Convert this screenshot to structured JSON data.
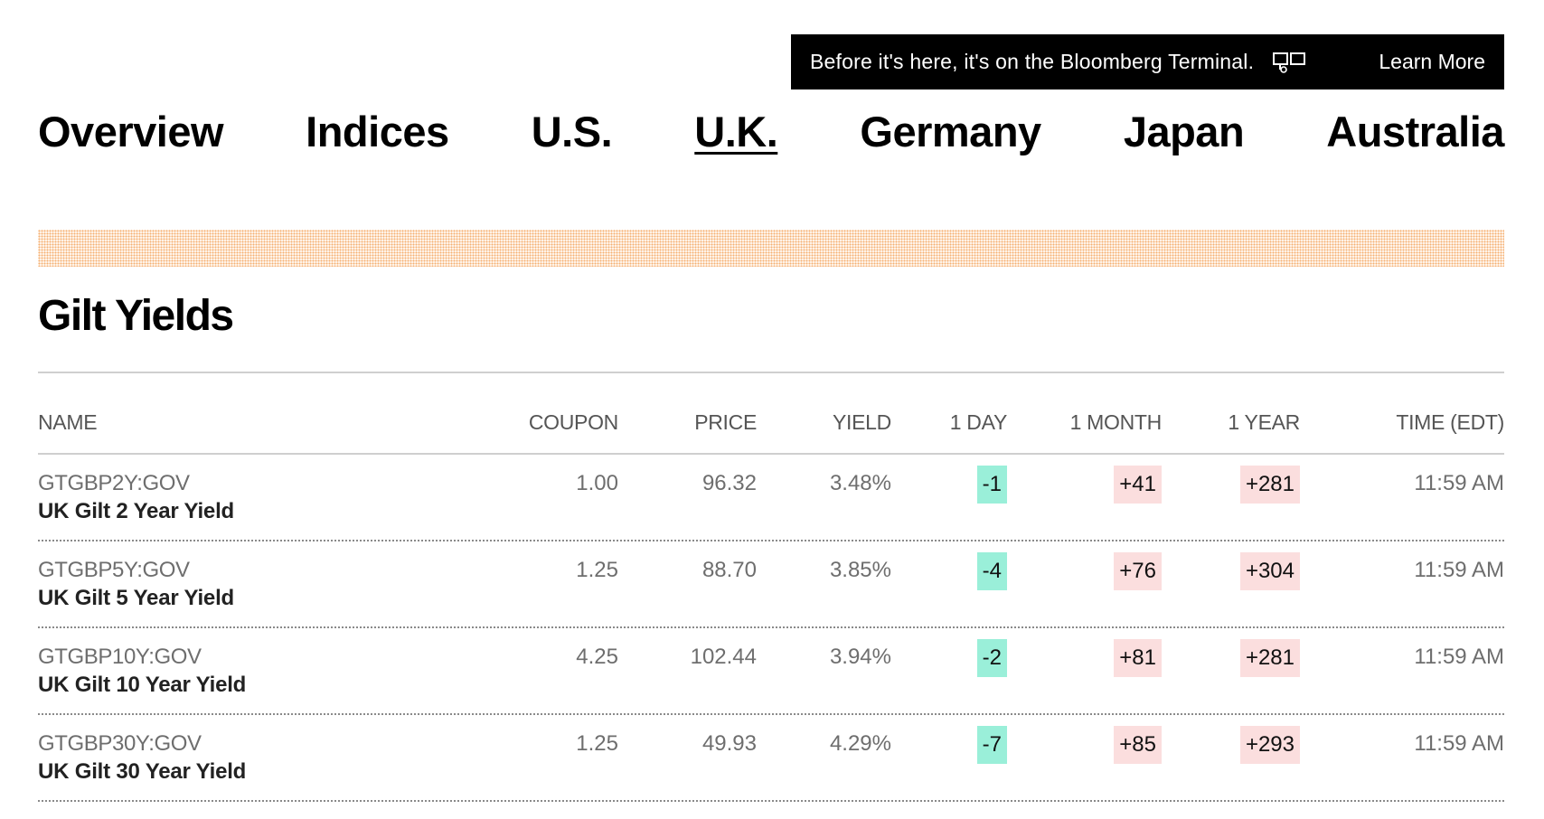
{
  "banner": {
    "text": "Before it's here, it's on the Bloomberg Terminal.",
    "icon": "terminal-icon",
    "link": "Learn More"
  },
  "nav": {
    "items": [
      {
        "label": "Overview"
      },
      {
        "label": "Indices"
      },
      {
        "label": "U.S."
      },
      {
        "label": "U.K.",
        "active": true
      },
      {
        "label": "Germany"
      },
      {
        "label": "Japan"
      },
      {
        "label": "Australia"
      }
    ]
  },
  "section": {
    "title": "Gilt Yields"
  },
  "table": {
    "columns": [
      "NAME",
      "COUPON",
      "PRICE",
      "YIELD",
      "1 DAY",
      "1 MONTH",
      "1 YEAR",
      "TIME (EDT)"
    ],
    "rows": [
      {
        "ticker": "GTGBP2Y:GOV",
        "name": "UK Gilt 2 Year Yield",
        "coupon": "1.00",
        "price": "96.32",
        "yield": "3.48%",
        "day": "-1",
        "month": "+41",
        "year": "+281",
        "time": "11:59 AM"
      },
      {
        "ticker": "GTGBP5Y:GOV",
        "name": "UK Gilt 5 Year Yield",
        "coupon": "1.25",
        "price": "88.70",
        "yield": "3.85%",
        "day": "-4",
        "month": "+76",
        "year": "+304",
        "time": "11:59 AM"
      },
      {
        "ticker": "GTGBP10Y:GOV",
        "name": "UK Gilt 10 Year Yield",
        "coupon": "4.25",
        "price": "102.44",
        "yield": "3.94%",
        "day": "-2",
        "month": "+81",
        "year": "+281",
        "time": "11:59 AM"
      },
      {
        "ticker": "GTGBP30Y:GOV",
        "name": "UK Gilt 30 Year Yield",
        "coupon": "1.25",
        "price": "49.93",
        "yield": "4.29%",
        "day": "-7",
        "month": "+85",
        "year": "+293",
        "time": "11:59 AM"
      }
    ]
  },
  "colors": {
    "negative_change_bg": "#9aefd9",
    "positive_change_bg": "#fbdede",
    "banner_bg": "#000000",
    "dot_strip": "#f5b072"
  }
}
